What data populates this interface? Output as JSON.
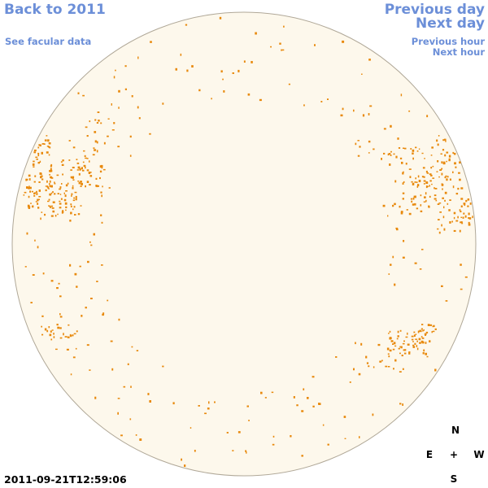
{
  "nav": {
    "back_label": "Back to 2011",
    "facular_label": "See facular data",
    "prev_day_label": "Previous day",
    "next_day_label": "Next day",
    "prev_hour_label": "Previous hour",
    "next_hour_label": "Next hour"
  },
  "compass": {
    "north": "N",
    "east": "E",
    "center": "+",
    "west": "W",
    "south": "S"
  },
  "timestamp": "2011-09-21T12:59:06",
  "colors": {
    "link": "#6c8fd8",
    "disk_fill": "#fdf8ec",
    "disk_stroke": "#b0a898",
    "facula": "#e8890c"
  }
}
